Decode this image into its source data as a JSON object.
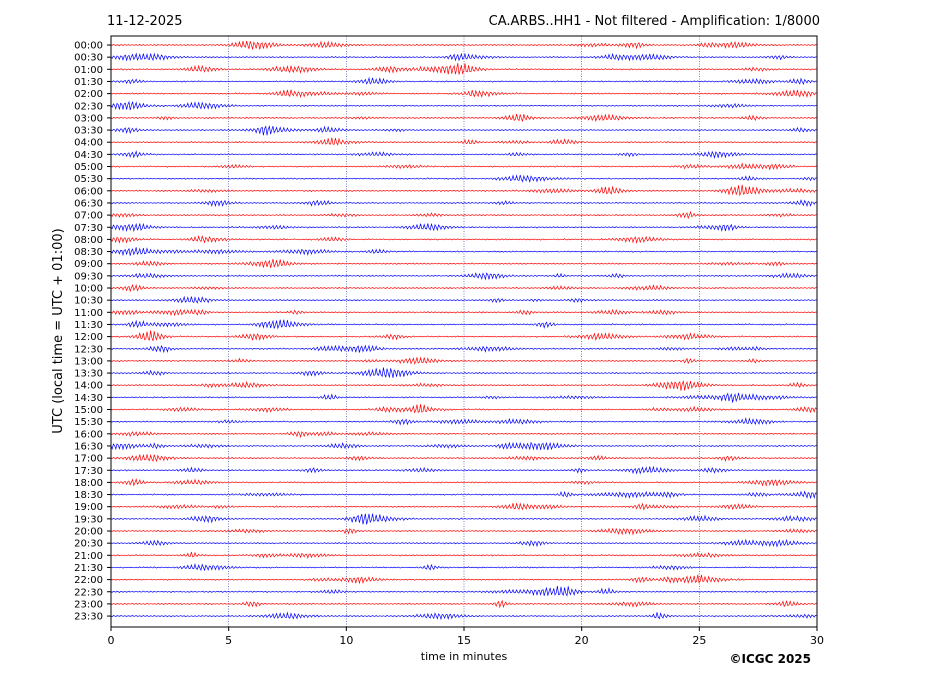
{
  "header": {
    "date": "11-12-2025",
    "station_title": "CA.ARBS..HH1 - Not filtered - Amplification: 1/8000"
  },
  "footer": {
    "copyright": "©ICGC 2025"
  },
  "colors": {
    "trace_a": "#ff0000",
    "trace_b": "#0000ff",
    "grid": "#1f3a93",
    "axes": "#000000"
  },
  "chart_data": {
    "type": "line",
    "title": "CA.ARBS..HH1 - Not filtered - Amplification: 1/8000",
    "xlabel": "time in minutes",
    "ylabel": "UTC (local time = UTC + 01:00)",
    "xlim": [
      0,
      30
    ],
    "x_ticks": [
      "0",
      "5",
      "10",
      "15",
      "20",
      "25",
      "30"
    ],
    "x_tick_values": [
      0,
      5,
      10,
      15,
      20,
      25,
      30
    ],
    "grid": {
      "x": true,
      "y": false,
      "style": "dotted"
    },
    "trace_color_pattern": [
      "red",
      "blue"
    ],
    "rows": [
      "00:00",
      "00:30",
      "01:00",
      "01:30",
      "02:00",
      "02:30",
      "03:00",
      "03:30",
      "04:00",
      "04:30",
      "05:00",
      "05:30",
      "06:00",
      "06:30",
      "07:00",
      "07:30",
      "08:00",
      "08:30",
      "09:00",
      "09:30",
      "10:00",
      "10:30",
      "11:00",
      "11:30",
      "12:00",
      "12:30",
      "13:00",
      "13:30",
      "14:00",
      "14:30",
      "15:00",
      "15:30",
      "16:00",
      "16:30",
      "17:00",
      "17:30",
      "18:00",
      "18:30",
      "19:00",
      "19:30",
      "20:00",
      "20:30",
      "21:00",
      "21:30",
      "22:00",
      "22:30",
      "23:00",
      "23:30"
    ]
  }
}
